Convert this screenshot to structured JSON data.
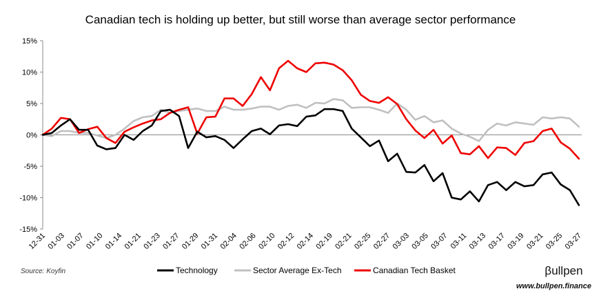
{
  "chart_data": {
    "type": "line",
    "title": "Canadian tech is holding up better, but still worse than average sector performance",
    "xlabel": "",
    "ylabel": "",
    "ylim": [
      -15,
      15
    ],
    "yticks": [
      15,
      10,
      5,
      0,
      -5,
      -10,
      -15
    ],
    "ytick_labels": [
      "15%",
      "10%",
      "5%",
      "0%",
      "-5%",
      "-10%",
      "-15%"
    ],
    "x_tick_labels": [
      "12-31",
      "01-03",
      "01-07",
      "01-10",
      "01-14",
      "01-21",
      "01-23",
      "01-27",
      "01-29",
      "01-31",
      "02-04",
      "02-06",
      "02-10",
      "02-12",
      "02-14",
      "02-19",
      "02-21",
      "02-25",
      "02-27",
      "03-03",
      "03-05",
      "03-07",
      "03-11",
      "03-13",
      "03-17",
      "03-19",
      "03-21",
      "03-25",
      "03-27"
    ],
    "grid": false,
    "legend_position": "bottom",
    "series": [
      {
        "name": "Technology",
        "color": "#000000",
        "values": [
          0,
          0.3,
          1.5,
          2.5,
          0.8,
          0.8,
          -1.7,
          -2.3,
          -2.1,
          0,
          -0.8,
          0.6,
          1.5,
          3.8,
          4.0,
          3.0,
          -2.1,
          0.5,
          -0.4,
          -0.2,
          -0.8,
          -2.1,
          -0.7,
          0.6,
          1.0,
          0.1,
          1.5,
          1.7,
          1.4,
          2.9,
          3.1,
          4.1,
          4.1,
          3.8,
          1.0,
          -0.4,
          -1.8,
          -0.9,
          -4.2,
          -3.0,
          -5.9,
          -6.0,
          -4.8,
          -7.4,
          -6.1,
          -10.0,
          -10.3,
          -9.0,
          -10.6,
          -8.0,
          -7.5,
          -8.8,
          -7.5,
          -8.2,
          -8.0,
          -6.3,
          -6.0,
          -7.9,
          -8.8,
          -11.2
        ]
      },
      {
        "name": "Sector Average Ex-Tech",
        "color": "#c0c0c0",
        "values": [
          0,
          -0.2,
          0.6,
          0.6,
          0.3,
          0.3,
          -0.1,
          -0.5,
          0,
          1.0,
          2.2,
          2.8,
          3.0,
          4.0,
          3.5,
          3.8,
          4.0,
          4.2,
          3.8,
          3.8,
          4.5,
          4.0,
          4.0,
          4.2,
          4.5,
          4.5,
          4.0,
          4.6,
          4.8,
          4.3,
          5.1,
          5.0,
          5.7,
          5.5,
          4.3,
          4.4,
          4.4,
          4.0,
          3.5,
          5.0,
          4.0,
          2.4,
          3.0,
          2.0,
          2.3,
          1.0,
          0.2,
          -0.3,
          -1.0,
          0.8,
          1.8,
          1.5,
          2.0,
          1.8,
          1.6,
          2.8,
          2.6,
          2.8,
          2.6,
          1.3
        ]
      },
      {
        "name": "Canadian Tech Basket",
        "color": "#ee0000",
        "values": [
          0,
          1.0,
          2.7,
          2.5,
          0.3,
          0.9,
          1.3,
          -0.5,
          -1.3,
          0.5,
          1.2,
          1.8,
          2.3,
          2.5,
          3.5,
          4.0,
          4.4,
          0.2,
          2.8,
          2.9,
          5.8,
          5.8,
          4.6,
          6.5,
          9.2,
          7.1,
          10.6,
          11.8,
          10.6,
          10.0,
          11.4,
          11.5,
          11.2,
          10.3,
          8.7,
          6.4,
          5.4,
          5.1,
          6.0,
          4.9,
          2.5,
          0.7,
          -0.5,
          0.8,
          -1.4,
          -0.1,
          -2.9,
          -3.1,
          -1.8,
          -3.7,
          -2.0,
          -2.1,
          -3.2,
          -1.3,
          -1.0,
          0.6,
          1.0,
          -1.2,
          -2.2,
          -3.8
        ]
      }
    ],
    "source": "Source: Koyfin",
    "brand": "βullpen",
    "brand_url": "www.bullpen.finance"
  }
}
